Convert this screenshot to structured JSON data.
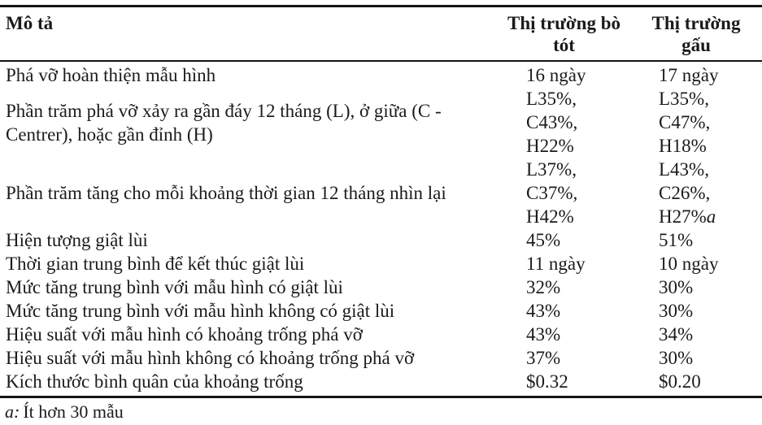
{
  "table": {
    "header": {
      "description_label": "Mô tả",
      "bull_label": "Thị trường bò\ntót",
      "bear_label": "Thị trường\ngấu"
    },
    "rows": [
      {
        "description": "Phá vỡ hoàn thiện mẫu hình",
        "bull": "16 ngày",
        "bear": "17 ngày"
      },
      {
        "description": "Phần trăm phá vỡ xảy ra gần đáy 12 tháng (L), ở giữa (C - Centrer), hoặc gần đỉnh (H)",
        "bull": "L35%,\nC43%,\nH22%",
        "bear": "L35%,\nC47%,\nH18%"
      },
      {
        "description": "Phần trăm tăng cho mỗi khoảng thời gian 12 tháng nhìn lại",
        "bull": "L37%,\nC37%,\nH42%",
        "bear": "L43%,\nC26%,\nH27%",
        "bear_marker": "a"
      },
      {
        "description": "Hiện tượng giật lùi",
        "bull": "45%",
        "bear": "51%"
      },
      {
        "description": "Thời gian trung bình để kết thúc giật lùi",
        "bull": "11 ngày",
        "bear": "10 ngày"
      },
      {
        "description": "Mức tăng trung bình với mẫu hình có giật lùi",
        "bull": "32%",
        "bear": "30%"
      },
      {
        "description": "Mức tăng trung bình với mẫu hình không có giật lùi",
        "bull": "43%",
        "bear": "30%"
      },
      {
        "description": "Hiệu suất với mẫu hình có khoảng trống phá vỡ",
        "bull": "43%",
        "bear": "34%"
      },
      {
        "description": "Hiệu suất với mẫu hình không có khoảng trống phá vỡ",
        "bull": "37%",
        "bear": "30%"
      },
      {
        "description": "Kích thước bình quân của khoảng trống",
        "bull": "$0.32",
        "bear": "$0.20"
      }
    ],
    "footnote": {
      "marker": "a:",
      "text": "Ít hơn 30 mẫu"
    }
  },
  "colors": {
    "text": "#1b1b1b",
    "rule": "#151515",
    "background": "#ffffff"
  }
}
